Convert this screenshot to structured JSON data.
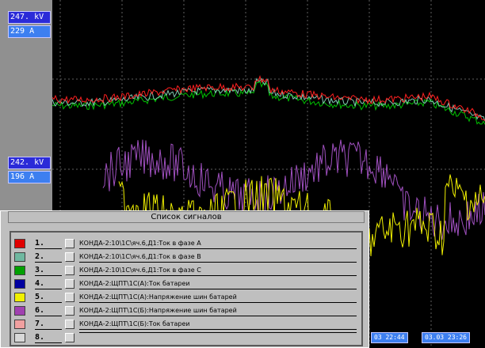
{
  "axis_top": {
    "voltage": "247. kV",
    "current": "229  A"
  },
  "axis_mid": {
    "voltage": "242. kV",
    "current": "196  A"
  },
  "panel": {
    "title": "Список сигналов",
    "signals": [
      {
        "num": "1.",
        "label": "КОНДА-2:10\\1С\\яч.6,Д1:Ток в фазе А",
        "color": "#e00000"
      },
      {
        "num": "2.",
        "label": "КОНДА-2:10\\1С\\яч.6,Д1:Ток в фазе В",
        "color": "#6fb8a0"
      },
      {
        "num": "3.",
        "label": "КОНДА-2:10\\1С\\яч.6,Д1:Ток в фазе С",
        "color": "#00a000"
      },
      {
        "num": "4.",
        "label": "КОНДА-2:ЩПТ\\1С(А):Ток батареи",
        "color": "#0000a0"
      },
      {
        "num": "5.",
        "label": "КОНДА-2:ЩПТ\\1С(А):Напряжение шин батарей",
        "color": "#f0f000"
      },
      {
        "num": "6.",
        "label": "КОНДА-2:ЩПТ\\1С(Б):Напряжение шин батарей",
        "color": "#a040b0"
      },
      {
        "num": "7.",
        "label": "КОНДА-2:ЩПТ\\1С(Б):Ток батареи",
        "color": "#f0a0a0"
      },
      {
        "num": "8.",
        "label": "",
        "color": "#d8d8d8"
      }
    ]
  },
  "time_labels": [
    "03 22:44",
    "03.03 23:26"
  ],
  "colors": {
    "grid": "#606060",
    "red": "#ff2020",
    "teal": "#80c8b0",
    "green": "#00c000",
    "purple": "#a050c0",
    "yellow": "#f0f000"
  }
}
